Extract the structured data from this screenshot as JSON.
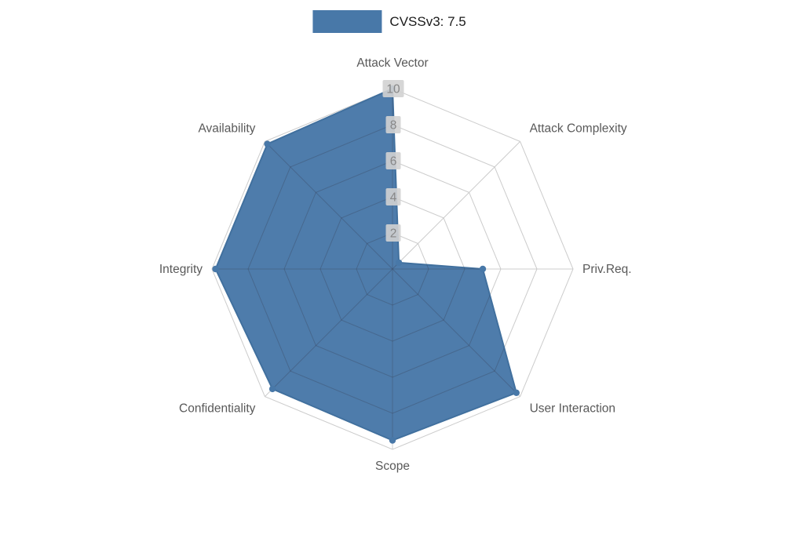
{
  "legend": {
    "label": "CVSSv3: 7.5"
  },
  "chart_data": {
    "type": "radar",
    "title": "CVSSv3: 7.5",
    "axes": [
      "Attack Vector",
      "Attack Complexity",
      "Priv.Req.",
      "User Interaction",
      "Scope",
      "Confidentiality",
      "Integrity",
      "Availability"
    ],
    "series": [
      {
        "name": "CVSSv3: 7.5",
        "values": [
          10,
          0.5,
          5,
          9.7,
          9.5,
          9.4,
          9.8,
          9.8
        ]
      }
    ],
    "rmax": 10,
    "ticks": [
      2,
      4,
      6,
      8,
      10
    ],
    "grid": "polygon-web",
    "legend_position": "top-center",
    "fill_color": "#4878a8",
    "stroke_color": "#41709e",
    "grid_color": "#cccccc",
    "label_color": "#595959",
    "tick_color": "#878787",
    "tick_bg": "#d2d2d2"
  }
}
